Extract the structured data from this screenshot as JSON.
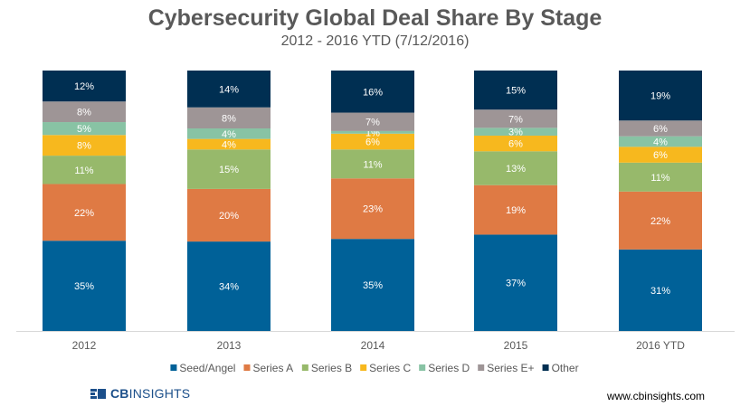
{
  "header": {
    "title": "Cybersecurity Global Deal Share By Stage",
    "subtitle": "2012 - 2016 YTD (7/12/2016)"
  },
  "footer": {
    "logo_cb": "CB",
    "logo_insights": "INSIGHTS",
    "website": "www.cbinsights.com"
  },
  "colors": {
    "Seed/Angel": "#006198",
    "Series A": "#df7a44",
    "Series B": "#97b96b",
    "Series C": "#f7b81e",
    "Series D": "#88c3a4",
    "Series E+": "#9e9596",
    "Other": "#002f52"
  },
  "chart_data": {
    "type": "bar",
    "stacked": true,
    "percent": true,
    "title": "Cybersecurity Global Deal Share By Stage",
    "subtitle": "2012 - 2016 YTD (7/12/2016)",
    "categories": [
      "2012",
      "2013",
      "2014",
      "2015",
      "2016 YTD"
    ],
    "series": [
      {
        "name": "Seed/Angel",
        "values": [
          35,
          34,
          35,
          37,
          31
        ]
      },
      {
        "name": "Series A",
        "values": [
          22,
          20,
          23,
          19,
          22
        ]
      },
      {
        "name": "Series B",
        "values": [
          11,
          15,
          11,
          13,
          11
        ]
      },
      {
        "name": "Series C",
        "values": [
          8,
          4,
          6,
          6,
          6
        ]
      },
      {
        "name": "Series D",
        "values": [
          5,
          4,
          1,
          3,
          4
        ]
      },
      {
        "name": "Series E+",
        "values": [
          8,
          8,
          7,
          7,
          6
        ]
      },
      {
        "name": "Other",
        "values": [
          12,
          14,
          16,
          15,
          19
        ]
      }
    ],
    "legend_position": "bottom",
    "ylim": [
      0,
      100
    ]
  }
}
